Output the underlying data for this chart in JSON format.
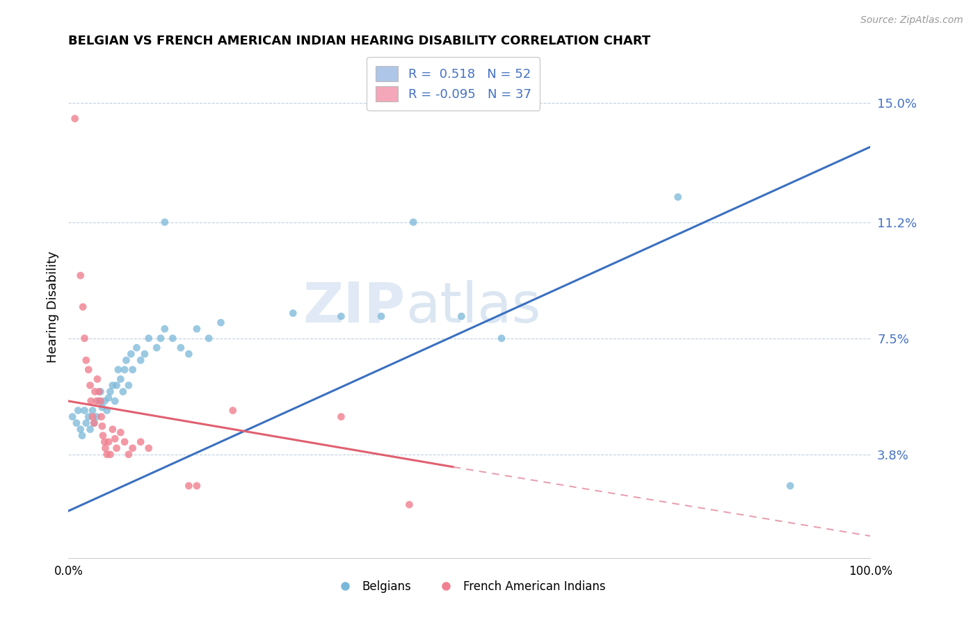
{
  "title": "BELGIAN VS FRENCH AMERICAN INDIAN HEARING DISABILITY CORRELATION CHART",
  "source": "Source: ZipAtlas.com",
  "ylabel": "Hearing Disability",
  "yticks": [
    0.038,
    0.075,
    0.112,
    0.15
  ],
  "ytick_labels": [
    "3.8%",
    "7.5%",
    "11.2%",
    "15.0%"
  ],
  "xlim": [
    0.0,
    1.0
  ],
  "ylim": [
    0.005,
    0.165
  ],
  "legend_entries": [
    {
      "label": "R =  0.518   N = 52",
      "color": "#aec6e8"
    },
    {
      "label": "R = -0.095   N = 37",
      "color": "#f4a7b9"
    }
  ],
  "legend_bottom": [
    "Belgians",
    "French American Indians"
  ],
  "belgian_color": "#7ab8d9",
  "french_color": "#f08090",
  "watermark": "ZIPatlas",
  "background_color": "#ffffff",
  "blue_line": {
    "x0": 0.0,
    "y0": 0.02,
    "x1": 1.0,
    "y1": 0.136
  },
  "pink_line_solid": {
    "x0": 0.0,
    "y0": 0.055,
    "x1": 0.48,
    "y1": 0.034
  },
  "pink_line_dashed": {
    "x0": 0.48,
    "y0": 0.034,
    "x1": 1.0,
    "y1": 0.012
  },
  "scatter_blue": [
    [
      0.005,
      0.05
    ],
    [
      0.01,
      0.048
    ],
    [
      0.012,
      0.052
    ],
    [
      0.015,
      0.046
    ],
    [
      0.017,
      0.044
    ],
    [
      0.02,
      0.052
    ],
    [
      0.022,
      0.048
    ],
    [
      0.025,
      0.05
    ],
    [
      0.027,
      0.046
    ],
    [
      0.03,
      0.052
    ],
    [
      0.032,
      0.048
    ],
    [
      0.035,
      0.05
    ],
    [
      0.038,
      0.055
    ],
    [
      0.04,
      0.058
    ],
    [
      0.042,
      0.053
    ],
    [
      0.045,
      0.055
    ],
    [
      0.048,
      0.052
    ],
    [
      0.05,
      0.056
    ],
    [
      0.052,
      0.058
    ],
    [
      0.055,
      0.06
    ],
    [
      0.058,
      0.055
    ],
    [
      0.06,
      0.06
    ],
    [
      0.062,
      0.065
    ],
    [
      0.065,
      0.062
    ],
    [
      0.068,
      0.058
    ],
    [
      0.07,
      0.065
    ],
    [
      0.072,
      0.068
    ],
    [
      0.075,
      0.06
    ],
    [
      0.078,
      0.07
    ],
    [
      0.08,
      0.065
    ],
    [
      0.085,
      0.072
    ],
    [
      0.09,
      0.068
    ],
    [
      0.095,
      0.07
    ],
    [
      0.1,
      0.075
    ],
    [
      0.11,
      0.072
    ],
    [
      0.115,
      0.075
    ],
    [
      0.12,
      0.078
    ],
    [
      0.13,
      0.075
    ],
    [
      0.14,
      0.072
    ],
    [
      0.15,
      0.07
    ],
    [
      0.16,
      0.078
    ],
    [
      0.175,
      0.075
    ],
    [
      0.19,
      0.08
    ],
    [
      0.12,
      0.112
    ],
    [
      0.28,
      0.083
    ],
    [
      0.34,
      0.082
    ],
    [
      0.39,
      0.082
    ],
    [
      0.49,
      0.082
    ],
    [
      0.54,
      0.075
    ],
    [
      0.43,
      0.112
    ],
    [
      0.76,
      0.12
    ],
    [
      0.9,
      0.028
    ]
  ],
  "scatter_pink": [
    [
      0.008,
      0.145
    ],
    [
      0.015,
      0.095
    ],
    [
      0.018,
      0.085
    ],
    [
      0.02,
      0.075
    ],
    [
      0.022,
      0.068
    ],
    [
      0.025,
      0.065
    ],
    [
      0.027,
      0.06
    ],
    [
      0.028,
      0.055
    ],
    [
      0.03,
      0.05
    ],
    [
      0.032,
      0.048
    ],
    [
      0.033,
      0.058
    ],
    [
      0.035,
      0.055
    ],
    [
      0.036,
      0.062
    ],
    [
      0.038,
      0.058
    ],
    [
      0.04,
      0.055
    ],
    [
      0.041,
      0.05
    ],
    [
      0.042,
      0.047
    ],
    [
      0.043,
      0.044
    ],
    [
      0.045,
      0.042
    ],
    [
      0.046,
      0.04
    ],
    [
      0.048,
      0.038
    ],
    [
      0.05,
      0.042
    ],
    [
      0.052,
      0.038
    ],
    [
      0.055,
      0.046
    ],
    [
      0.058,
      0.043
    ],
    [
      0.06,
      0.04
    ],
    [
      0.065,
      0.045
    ],
    [
      0.07,
      0.042
    ],
    [
      0.075,
      0.038
    ],
    [
      0.08,
      0.04
    ],
    [
      0.09,
      0.042
    ],
    [
      0.1,
      0.04
    ],
    [
      0.15,
      0.028
    ],
    [
      0.16,
      0.028
    ],
    [
      0.205,
      0.052
    ],
    [
      0.34,
      0.05
    ],
    [
      0.425,
      0.022
    ]
  ]
}
